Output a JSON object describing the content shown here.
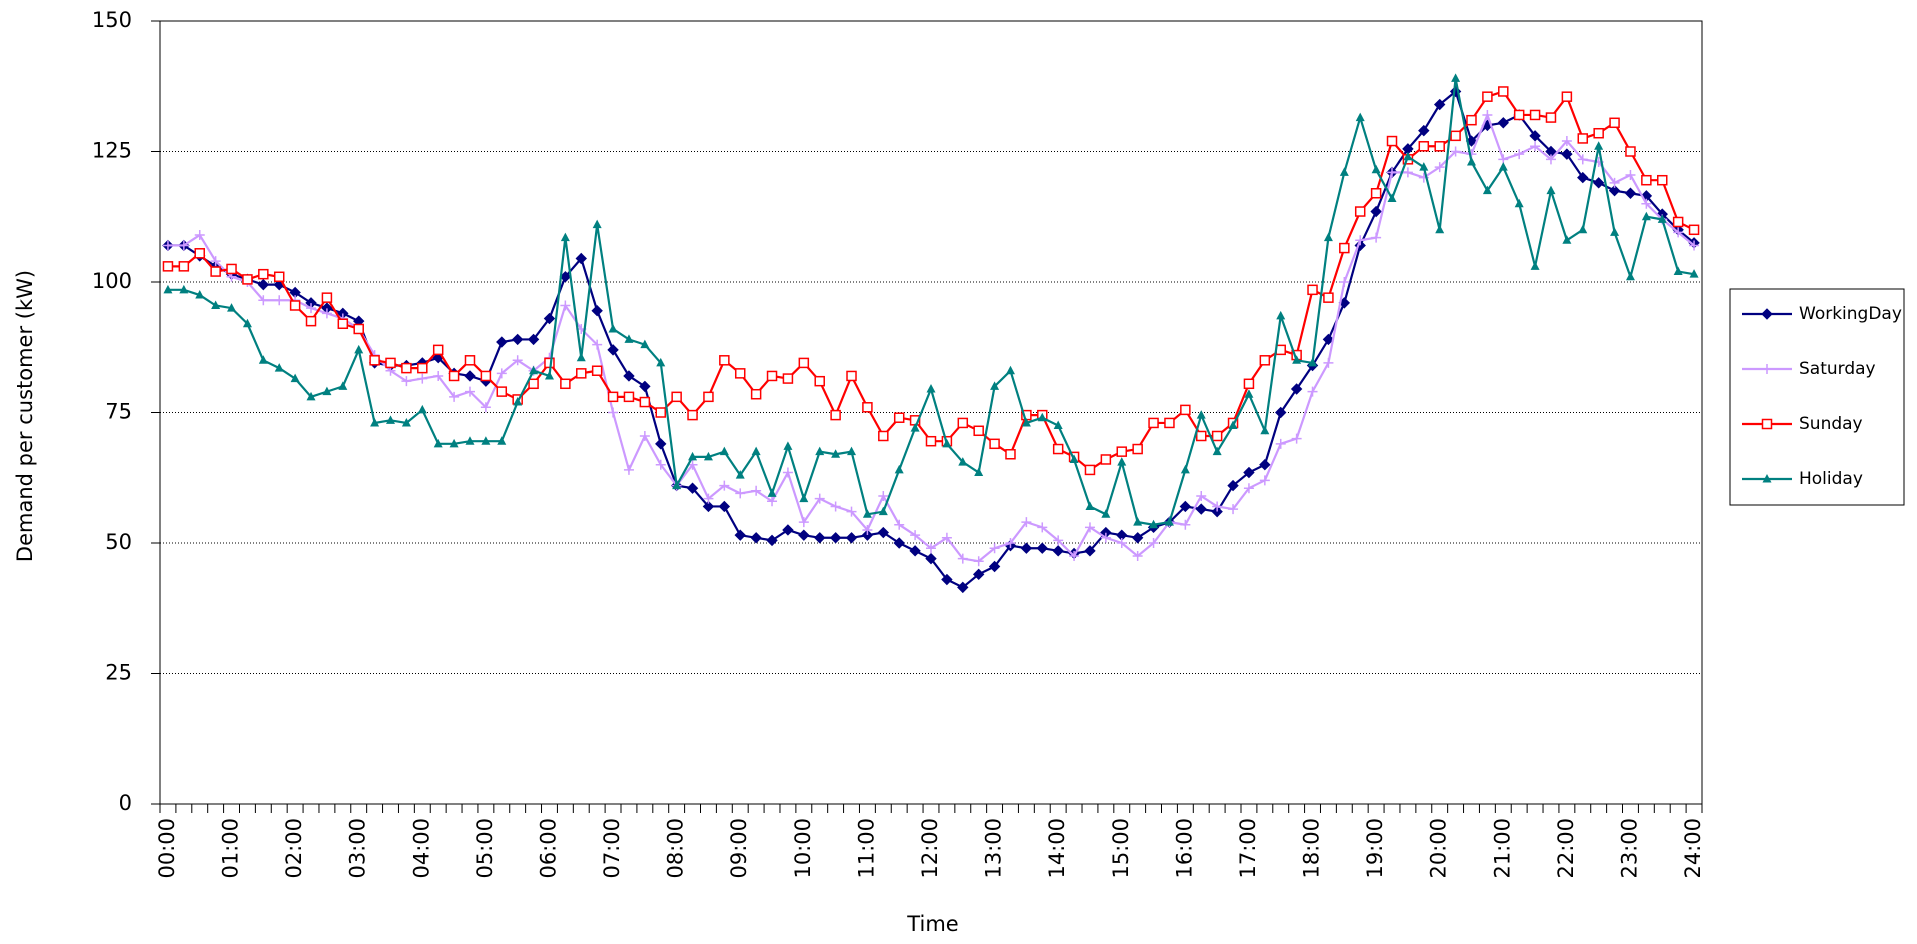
{
  "chart_data": {
    "type": "line",
    "x_label": "Time",
    "y_label": "Demand per customer (kW)",
    "categories": [
      "00:00",
      null,
      null,
      null,
      "01:00",
      null,
      null,
      null,
      "02:00",
      null,
      null,
      null,
      "03:00",
      null,
      null,
      null,
      "04:00",
      null,
      null,
      null,
      "05:00",
      null,
      null,
      null,
      "06:00",
      null,
      null,
      null,
      "07:00",
      null,
      null,
      null,
      "08:00",
      null,
      null,
      null,
      "09:00",
      null,
      null,
      null,
      "10:00",
      null,
      null,
      null,
      "11:00",
      null,
      null,
      null,
      "12:00",
      null,
      null,
      null,
      "13:00",
      null,
      null,
      null,
      "14:00",
      null,
      null,
      null,
      "15:00",
      null,
      null,
      null,
      "16:00",
      null,
      null,
      null,
      "17:00",
      null,
      null,
      null,
      "18:00",
      null,
      null,
      null,
      "19:00",
      null,
      null,
      null,
      "20:00",
      null,
      null,
      null,
      "21:00",
      null,
      null,
      null,
      "22:00",
      null,
      null,
      null,
      "23:00",
      null,
      null,
      null,
      "24:00"
    ],
    "ylim": [
      0,
      150
    ],
    "yticks": [
      0,
      25,
      50,
      75,
      100,
      125,
      150
    ],
    "grid": true,
    "legend": "right",
    "series": [
      {
        "name": "WorkingDay",
        "color": "#000080",
        "marker": "diamond",
        "values": [
          107,
          107,
          105,
          103,
          101.5,
          100.5,
          99.5,
          99.5,
          98,
          96,
          95,
          94,
          92.5,
          84.5,
          84,
          84,
          84.5,
          85.5,
          82.5,
          82,
          81,
          88.5,
          89,
          89,
          93,
          101,
          104.5,
          94.5,
          87,
          82,
          80,
          69,
          61,
          60.5,
          57,
          57,
          51.5,
          51,
          50.5,
          52.5,
          51.5,
          51,
          51,
          51,
          51.5,
          52,
          50,
          48.5,
          47,
          43,
          41.5,
          44,
          45.5,
          49.5,
          49,
          49,
          48.5,
          48,
          48.5,
          52,
          51.5,
          51,
          53,
          54,
          57,
          56.5,
          56,
          61,
          63.5,
          65,
          75,
          79.5,
          84,
          89,
          96,
          107,
          113.5,
          121,
          125.5,
          129,
          134,
          136.5,
          127,
          130,
          130.5,
          132,
          128,
          125,
          124.5,
          120,
          119,
          117.5,
          117,
          116.5,
          113,
          110,
          107.5
        ]
      },
      {
        "name": "Saturday",
        "color": "#cc99ff",
        "marker": "plus",
        "values": [
          107,
          107,
          109,
          104,
          101,
          100,
          96.5,
          96.5,
          96.5,
          95,
          94,
          93,
          91,
          86,
          83,
          81,
          81.5,
          82,
          78,
          79,
          76,
          82.5,
          85,
          83,
          85.5,
          95.5,
          91,
          88,
          75,
          64,
          70.5,
          65,
          61,
          65,
          58.5,
          61,
          59.5,
          60,
          58,
          63.5,
          54,
          58.5,
          57,
          56,
          52.5,
          59,
          53.5,
          51.5,
          49,
          51,
          47,
          46.5,
          49,
          50,
          54,
          53,
          50.5,
          47.5,
          53,
          51,
          50,
          47.5,
          50,
          54,
          53.5,
          59,
          57,
          56.5,
          60.5,
          62,
          69,
          70,
          79,
          84.5,
          100,
          108,
          108.5,
          121,
          121,
          120,
          122,
          125,
          124.5,
          132,
          123.5,
          124.5,
          126,
          123.5,
          127,
          123.5,
          123,
          119,
          120.5,
          115,
          112,
          109.5,
          107
        ]
      },
      {
        "name": "Sunday",
        "color": "#ff0000",
        "marker": "square",
        "values": [
          103,
          103,
          105.5,
          102,
          102.5,
          100.5,
          101.5,
          101,
          95.5,
          92.5,
          97,
          92,
          91,
          85,
          84.5,
          83.5,
          83.5,
          87,
          82,
          85,
          82,
          79,
          77.5,
          80.5,
          84.5,
          80.5,
          82.5,
          83,
          78,
          78,
          77,
          75,
          78,
          74.5,
          78,
          85,
          82.5,
          78.5,
          82,
          81.5,
          84.5,
          81,
          74.5,
          82,
          76,
          70.5,
          74,
          73.5,
          69.5,
          69.5,
          73,
          71.5,
          69,
          67,
          74.5,
          74.5,
          68,
          66.5,
          64,
          66,
          67.5,
          68,
          73,
          73,
          75.5,
          70.5,
          70.5,
          73,
          80.5,
          85,
          87,
          86,
          98.5,
          97,
          106.5,
          113.5,
          117,
          127,
          123.5,
          126,
          126,
          128,
          131,
          135.5,
          136.5,
          132,
          132,
          131.5,
          135.5,
          127.5,
          128.5,
          130.5,
          125,
          119.5,
          119.5,
          111.5,
          110
        ]
      },
      {
        "name": "Holiday",
        "color": "#008080",
        "marker": "triangle",
        "values": [
          98.5,
          98.5,
          97.5,
          95.5,
          95,
          92,
          85,
          83.5,
          81.5,
          78,
          79,
          80,
          87,
          73,
          73.5,
          73,
          75.5,
          69,
          69,
          69.5,
          69.5,
          69.5,
          77,
          83,
          82,
          108.5,
          85.5,
          111,
          91,
          89,
          88,
          84.5,
          61,
          66.5,
          66.5,
          67.5,
          63,
          67.5,
          59.5,
          68.5,
          58.5,
          67.5,
          67,
          67.5,
          55.5,
          56,
          64,
          72,
          79.5,
          69,
          65.5,
          63.5,
          80,
          83,
          73,
          74,
          72.5,
          66,
          57,
          55.5,
          65.5,
          54,
          53.5,
          54,
          64,
          74.5,
          67.5,
          72.5,
          78.5,
          71.5,
          93.5,
          85,
          84.5,
          108.5,
          121,
          131.5,
          121.5,
          116,
          124,
          122,
          110,
          139,
          123,
          117.5,
          122,
          115,
          103,
          117.5,
          108,
          110,
          126,
          109.5,
          101,
          112.5,
          112,
          102,
          101.5
        ]
      }
    ]
  }
}
